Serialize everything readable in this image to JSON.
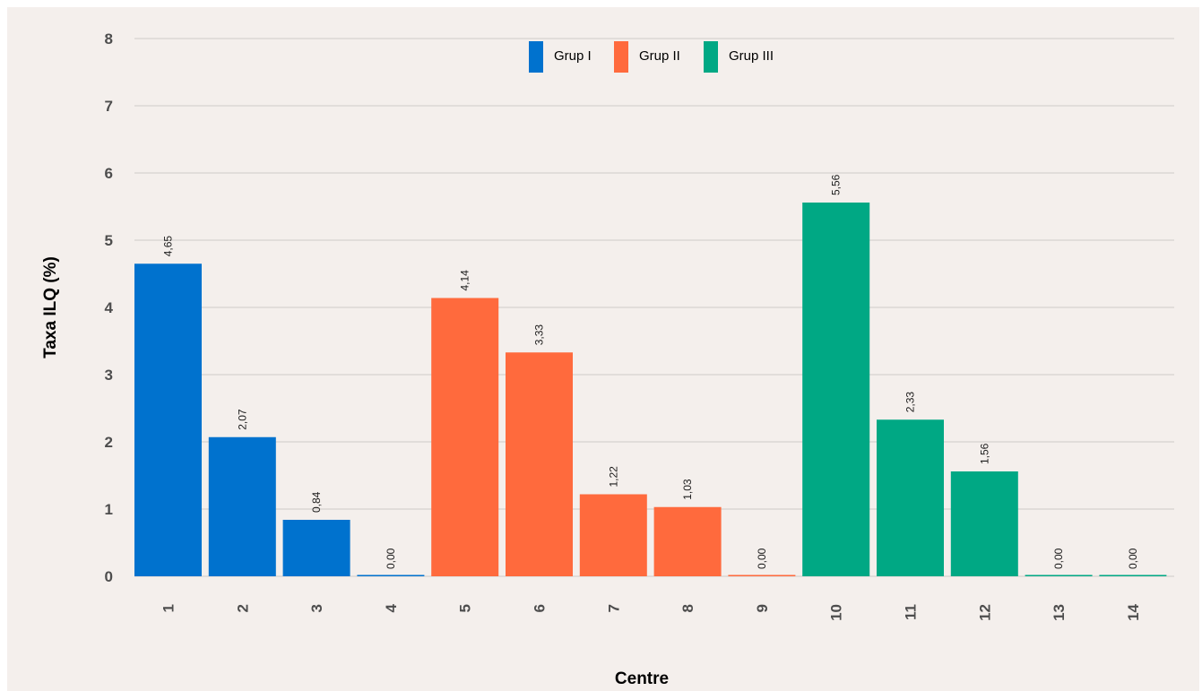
{
  "chart_data": {
    "type": "bar",
    "xlabel": "Centre",
    "ylabel": "Taxa ILQ (%)",
    "ylim": [
      0,
      8
    ],
    "yticks": [
      "0",
      "1",
      "2",
      "3",
      "4",
      "5",
      "6",
      "7",
      "8"
    ],
    "grid": "horizontal",
    "legend_position": "top-center",
    "categories": [
      "1",
      "2",
      "3",
      "4",
      "5",
      "6",
      "7",
      "8",
      "9",
      "10",
      "11",
      "12",
      "13",
      "14"
    ],
    "values": [
      4.65,
      2.07,
      0.84,
      0.0,
      4.14,
      3.33,
      1.22,
      1.03,
      0.0,
      5.56,
      2.33,
      1.56,
      0.0,
      0.0
    ],
    "data_labels": [
      "4,65",
      "2,07",
      "0,84",
      "0,00",
      "4,14",
      "3,33",
      "1,22",
      "1,03",
      "0,00",
      "5,56",
      "2,33",
      "1,56",
      "0,00",
      "0,00"
    ],
    "groups": [
      "Grup I",
      "Grup I",
      "Grup I",
      "Grup I",
      "Grup II",
      "Grup II",
      "Grup II",
      "Grup II",
      "Grup II",
      "Grup III",
      "Grup III",
      "Grup III",
      "Grup III",
      "Grup III"
    ],
    "legend": [
      {
        "name": "Grup I",
        "color": "#0072ce"
      },
      {
        "name": "Grup II",
        "color": "#ff6a3d"
      },
      {
        "name": "Grup III",
        "color": "#00a884"
      }
    ]
  }
}
